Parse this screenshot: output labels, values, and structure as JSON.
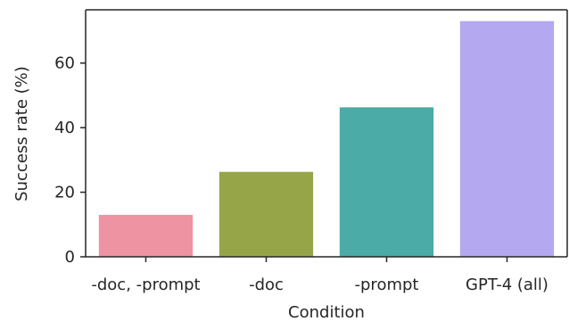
{
  "chart_data": {
    "type": "bar",
    "categories": [
      "-doc, -prompt",
      "-doc",
      "-prompt",
      "GPT-4 (all)"
    ],
    "values": [
      13,
      26.3,
      46.3,
      73
    ],
    "colors": [
      "#ee93a2",
      "#96a548",
      "#4aaba7",
      "#b4a8f0"
    ],
    "xlabel": "Condition",
    "ylabel": "Success rate (%)",
    "ylim": [
      0,
      76.5
    ],
    "yticks": [
      0,
      20,
      40,
      60
    ],
    "grid": false
  }
}
